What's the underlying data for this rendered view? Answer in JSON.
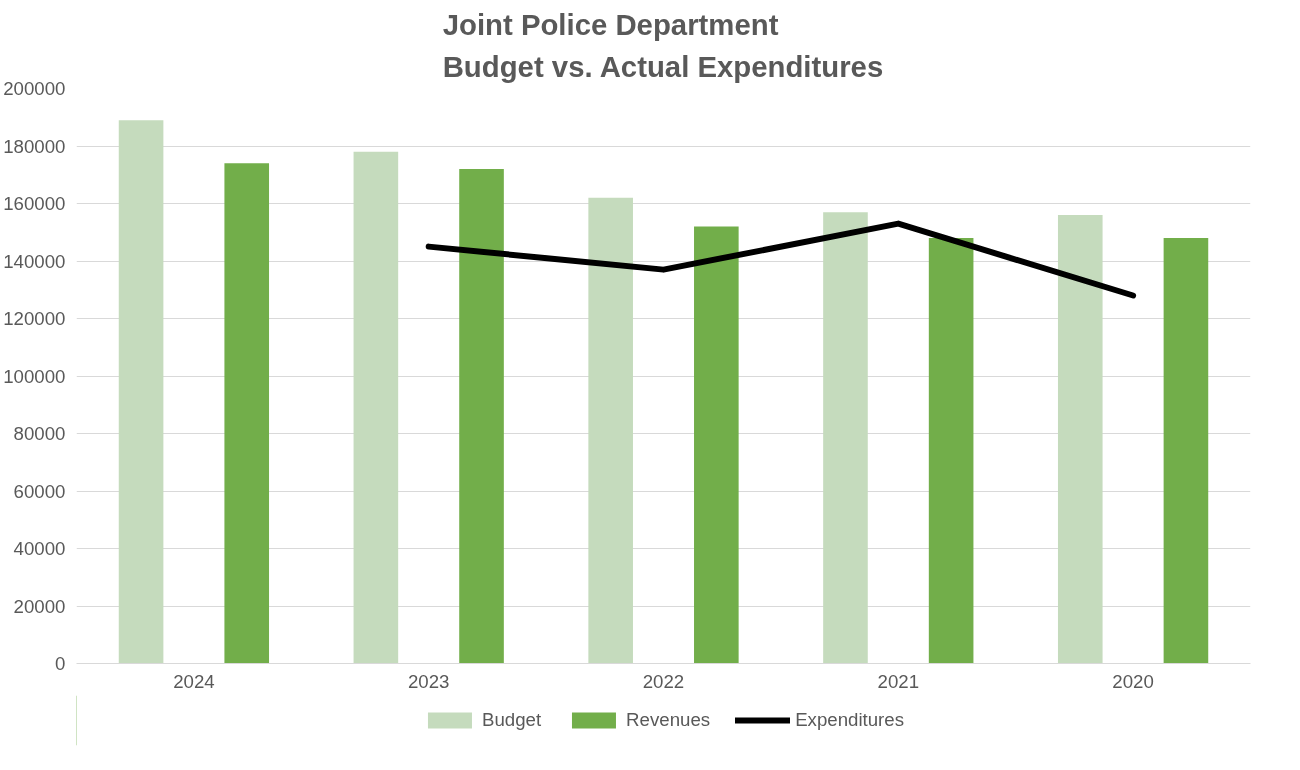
{
  "chart_data": {
    "type": "bar",
    "title": "Joint Police Department\nBudget vs. Actual Expenditures",
    "categories": [
      "2024",
      "2023",
      "2022",
      "2021",
      "2020"
    ],
    "series": [
      {
        "name": "Budget",
        "color": "#c5dbbd",
        "values": [
          189000,
          178000,
          162000,
          157000,
          156000
        ]
      },
      {
        "name": "Revenues",
        "color": "#72ae4a",
        "values": [
          174000,
          172000,
          152000,
          148000,
          148000
        ]
      },
      {
        "name": "Expenditures",
        "type": "line",
        "color": "#000000",
        "values": [
          null,
          145000,
          137000,
          153000,
          128000
        ]
      }
    ],
    "ylim": [
      0,
      200000
    ],
    "yticks": [
      0,
      20000,
      40000,
      60000,
      80000,
      100000,
      120000,
      140000,
      160000,
      180000,
      200000
    ],
    "grid": "y",
    "legend": "bottom"
  }
}
